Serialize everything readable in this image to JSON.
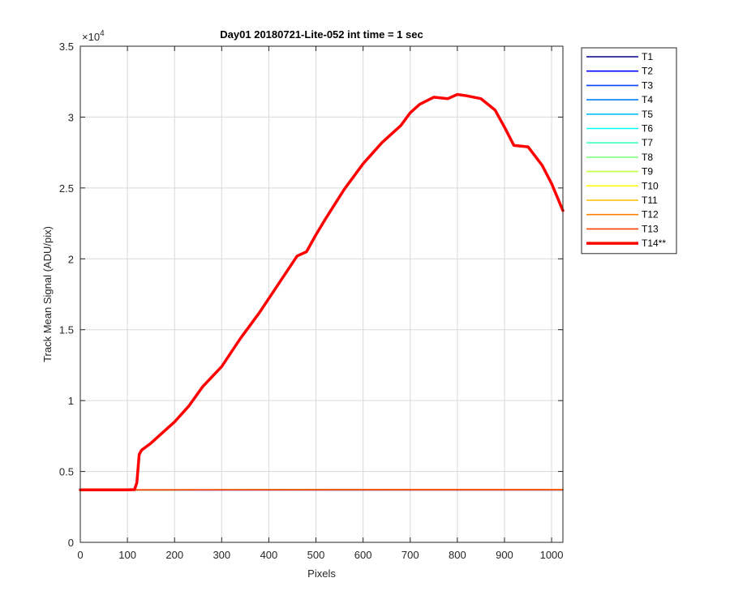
{
  "chart_data": {
    "type": "line",
    "title": "Day01 20180721-Lite-052 int time = 1 sec",
    "xlabel": "Pixels",
    "ylabel": "Track Mean Signal (ADU/pix)",
    "y_exponent_label": "×10",
    "y_exponent_power": "4",
    "xlim": [
      0,
      1024
    ],
    "ylim": [
      0,
      35000
    ],
    "x_ticks": [
      0,
      100,
      200,
      300,
      400,
      500,
      600,
      700,
      800,
      900,
      1000
    ],
    "x_tick_labels": [
      "0",
      "100",
      "200",
      "300",
      "400",
      "500",
      "600",
      "700",
      "800",
      "900",
      "1000"
    ],
    "y_ticks": [
      0,
      5000,
      10000,
      15000,
      20000,
      25000,
      30000,
      35000
    ],
    "y_tick_labels": [
      "0",
      "0.5",
      "1",
      "1.5",
      "2",
      "2.5",
      "3",
      "3.5"
    ],
    "grid": true,
    "legend_position": "outside-right",
    "series": [
      {
        "name": "T1",
        "color": "#00008f",
        "x": [
          0,
          1024
        ],
        "y": [
          3700,
          3700
        ]
      },
      {
        "name": "T2",
        "color": "#0000ff",
        "x": [
          0,
          1024
        ],
        "y": [
          3700,
          3700
        ]
      },
      {
        "name": "T3",
        "color": "#0040ff",
        "x": [
          0,
          1024
        ],
        "y": [
          3700,
          3710
        ]
      },
      {
        "name": "T4",
        "color": "#0080ff",
        "x": [
          0,
          1024
        ],
        "y": [
          3700,
          3710
        ]
      },
      {
        "name": "T5",
        "color": "#00bfff",
        "x": [
          0,
          1024
        ],
        "y": [
          3700,
          3710
        ]
      },
      {
        "name": "T6",
        "color": "#00ffff",
        "x": [
          0,
          1024
        ],
        "y": [
          3700,
          3710
        ]
      },
      {
        "name": "T7",
        "color": "#40ffbf",
        "x": [
          0,
          1024
        ],
        "y": [
          3700,
          3710
        ]
      },
      {
        "name": "T8",
        "color": "#80ff80",
        "x": [
          0,
          1024
        ],
        "y": [
          3700,
          3710
        ]
      },
      {
        "name": "T9",
        "color": "#bfff40",
        "x": [
          0,
          1024
        ],
        "y": [
          3700,
          3710
        ]
      },
      {
        "name": "T10",
        "color": "#ffff00",
        "x": [
          0,
          1024
        ],
        "y": [
          3700,
          3710
        ]
      },
      {
        "name": "T11",
        "color": "#ffbf00",
        "x": [
          0,
          1024
        ],
        "y": [
          3700,
          3710
        ]
      },
      {
        "name": "T12",
        "color": "#ff8000",
        "x": [
          0,
          1024
        ],
        "y": [
          3700,
          3720
        ]
      },
      {
        "name": "T13",
        "color": "#ff4000",
        "x": [
          0,
          1024
        ],
        "y": [
          3700,
          3720
        ]
      },
      {
        "name": "T14**",
        "color": "#ff0000",
        "thick": true,
        "x": [
          0,
          100,
          115,
          120,
          125,
          130,
          150,
          170,
          200,
          230,
          260,
          300,
          340,
          380,
          420,
          460,
          480,
          500,
          520,
          560,
          600,
          640,
          680,
          700,
          720,
          750,
          780,
          800,
          820,
          850,
          880,
          900,
          920,
          950,
          980,
          1000,
          1024
        ],
        "y": [
          3700,
          3700,
          3720,
          4200,
          6200,
          6500,
          7000,
          7600,
          8500,
          9600,
          11000,
          12400,
          14400,
          16200,
          18200,
          20200,
          20500,
          21700,
          22800,
          24900,
          26700,
          28200,
          29400,
          30300,
          30900,
          31400,
          31300,
          31600,
          31500,
          31300,
          30500,
          29300,
          28000,
          27900,
          26600,
          25300,
          23400
        ]
      }
    ]
  }
}
